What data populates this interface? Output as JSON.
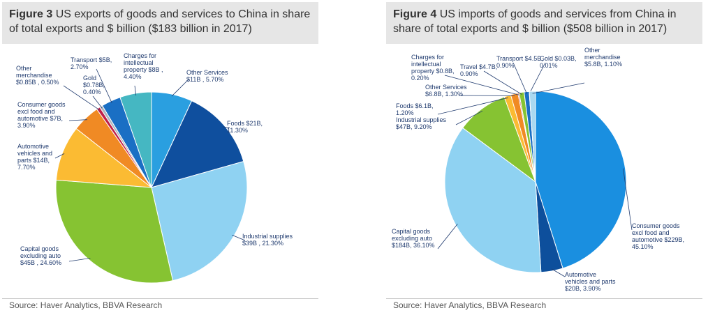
{
  "figures": [
    {
      "number": "Figure 3",
      "title": "US exports of goods and services to China in share of total exports and $ billion ($183 billion in 2017)",
      "source": "Source: Haver Analytics, BBVA Research"
    },
    {
      "number": "Figure 4",
      "title": "US imports of goods and services from China in share of total exports and $ billion ($508 billion in 2017)",
      "source": "Source: Haver Analytics, BBVA Research"
    }
  ],
  "chart_data": [
    {
      "type": "pie",
      "title": "US exports of goods and services to China in share of total exports and $ billion ($183 billion in 2017)",
      "slices": [
        {
          "label": [
            "Other Services",
            "$11B , 5.70%"
          ],
          "value": 5.7,
          "color": "#2a9fe0"
        },
        {
          "label": [
            "Foods $21B,",
            "11.30%"
          ],
          "value": 11.3,
          "color": "#0f4f9e"
        },
        {
          "label": [
            "Industrial supplies",
            "$39B , 21.30%"
          ],
          "value": 21.3,
          "color": "#8fd2f2"
        },
        {
          "label": [
            "Capital goods",
            "excluding auto",
            "$45B , 24.60%"
          ],
          "value": 24.6,
          "color": "#86c332"
        },
        {
          "label": [
            "Automotive",
            "vehicles and",
            "parts $14B,",
            "7.70%"
          ],
          "value": 7.7,
          "color": "#fbbb33"
        },
        {
          "label": [
            "Consumer goods",
            "excl food and",
            "automotive $7B,",
            "3.90%"
          ],
          "value": 3.9,
          "color": "#f08a24"
        },
        {
          "label": [
            "Other",
            "merchandise",
            "$0.85B , 0.50%"
          ],
          "value": 0.5,
          "color": "#c0204a"
        },
        {
          "label": [
            "Gold",
            "$0.78B,",
            "0.40%"
          ],
          "value": 0.4,
          "color": "#aeb6bd"
        },
        {
          "label": [
            "Transport $5B,",
            "2.70%"
          ],
          "value": 2.7,
          "color": "#1a6fc4"
        },
        {
          "label": [
            "Charges for",
            "intellectual",
            "property $8B ,",
            "4.40%"
          ],
          "value": 4.4,
          "color": "#45b7c2"
        }
      ]
    },
    {
      "type": "pie",
      "title": "US imports of goods and services from China in share of total exports and $ billion ($508 billion in 2017)",
      "slices": [
        {
          "label": [
            "Consumer goods",
            "excl food and",
            "automotive $229B,",
            "45.10%"
          ],
          "value": 45.1,
          "color": "#1a8fe0"
        },
        {
          "label": [
            "Automotive",
            "vehicles and parts",
            "$20B, 3.90%"
          ],
          "value": 3.9,
          "color": "#0d4f9c"
        },
        {
          "label": [
            "Capital goods",
            "excluding auto",
            "$184B, 36.10%"
          ],
          "value": 36.1,
          "color": "#8fd2f2"
        },
        {
          "label": [
            "Industrial supplies",
            "$47B, 9.20%"
          ],
          "value": 9.2,
          "color": "#86c332"
        },
        {
          "label": [
            "Foods $6.1B,",
            "1.20%"
          ],
          "value": 1.2,
          "color": "#fbbb33"
        },
        {
          "label": [
            "Other Services",
            "$6.8B, 1.30%"
          ],
          "value": 1.3,
          "color": "#f08a24"
        },
        {
          "label": [
            "Charges for",
            "intellectual",
            "property $0.8B,",
            "0.20%"
          ],
          "value": 0.2,
          "color": "#c0204a"
        },
        {
          "label": [
            "Travel $4.7B,",
            "0.90%"
          ],
          "value": 0.9,
          "color": "#86c332"
        },
        {
          "label": [
            "Transport $4.5B,",
            "0.90%"
          ],
          "value": 0.9,
          "color": "#1a6fc4"
        },
        {
          "label": [
            "Gold $0.03B,",
            "0.01%"
          ],
          "value": 0.01,
          "color": "#45b7c2"
        },
        {
          "label": [
            "Other",
            "merchandise",
            "$5.8B, 1.10%"
          ],
          "value": 1.1,
          "color": "#aad8f0"
        }
      ]
    }
  ]
}
